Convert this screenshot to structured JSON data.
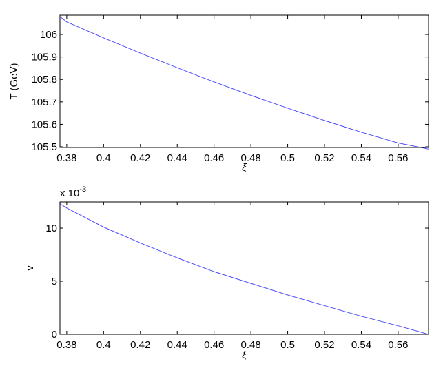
{
  "chart_data": [
    {
      "type": "line",
      "x_label": "ξ",
      "y_label": "T (GeV)",
      "x": [
        0.3763,
        0.38,
        0.4,
        0.42,
        0.44,
        0.46,
        0.48,
        0.5,
        0.52,
        0.54,
        0.56,
        0.5765
      ],
      "series": [
        {
          "color": "#4a4aff",
          "values": [
            106.08,
            106.056,
            105.985,
            105.917,
            105.852,
            105.789,
            105.729,
            105.672,
            105.617,
            105.565,
            105.517,
            105.49
          ]
        }
      ],
      "xlim": [
        0.3763,
        0.5765
      ],
      "ylim": [
        105.497,
        106.086
      ],
      "xticks": [
        0.38,
        0.4,
        0.42,
        0.44,
        0.46,
        0.48,
        0.5,
        0.52,
        0.54,
        0.56
      ],
      "yticks": [
        105.5,
        105.6,
        105.7,
        105.8,
        105.9,
        106
      ]
    },
    {
      "type": "line",
      "x_label": "ξ",
      "y_label": "v",
      "y_multiplier": "x 10",
      "y_multiplier_exponent": "-3",
      "x": [
        0.3763,
        0.38,
        0.4,
        0.42,
        0.44,
        0.46,
        0.48,
        0.5,
        0.52,
        0.54,
        0.56,
        0.5765
      ],
      "series": [
        {
          "color": "#4a4aff",
          "values": [
            12.3,
            11.9,
            10.1,
            8.6,
            7.2,
            5.9,
            4.8,
            3.7,
            2.7,
            1.7,
            0.8,
            0
          ]
        }
      ],
      "xlim": [
        0.3763,
        0.5765
      ],
      "ylim": [
        0,
        12.47
      ],
      "xticks": [
        0.38,
        0.4,
        0.42,
        0.44,
        0.46,
        0.48,
        0.5,
        0.52,
        0.54,
        0.56
      ],
      "yticks": [
        0,
        5,
        10
      ]
    }
  ]
}
